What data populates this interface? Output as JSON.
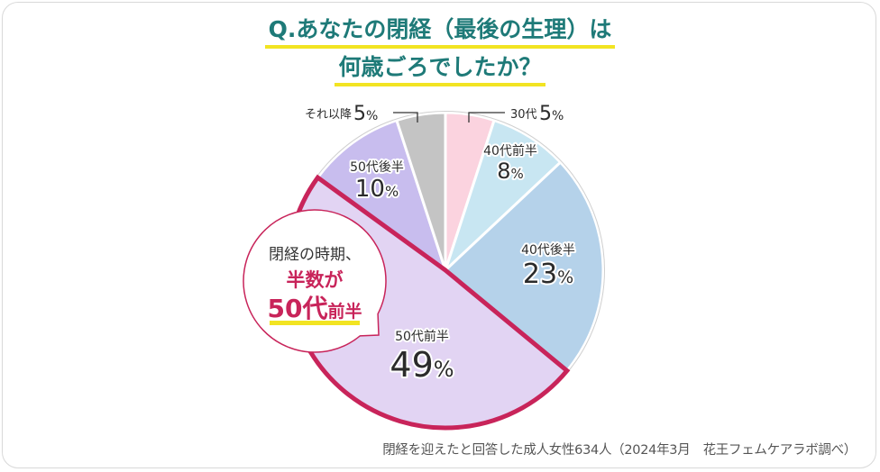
{
  "title": {
    "line1": "Q.あなたの閉経（最後の生理）は",
    "line2": "何歳ごろでしたか？"
  },
  "callout": {
    "line1": "閉経の時期、",
    "line2": "半数が",
    "line3_big": "50代",
    "line3_small": "前半"
  },
  "footnote": "閉経を迎えたと回答した成人女性634人（2024年3月　花王フェムケアラボ調べ）",
  "colors": {
    "title": "#1e7a78",
    "underline": "#f2e422",
    "highlight": "#c8245a"
  },
  "chart_data": {
    "type": "pie",
    "title": "Q.あなたの閉経（最後の生理）は何歳ごろでしたか？",
    "unit": "%",
    "direction": "clockwise from top",
    "slices": [
      {
        "label": "30代",
        "value": 5,
        "color": "#fbd3df"
      },
      {
        "label": "40代前半",
        "value": 8,
        "color": "#c8e6f2"
      },
      {
        "label": "40代後半",
        "value": 23,
        "color": "#b5d2ea"
      },
      {
        "label": "50代前半",
        "value": 49,
        "color": "#e2d4f3",
        "highlight": true
      },
      {
        "label": "50代後半",
        "value": 10,
        "color": "#c8bdee"
      },
      {
        "label": "それ以降",
        "value": 5,
        "color": "#c4c4c4"
      }
    ]
  }
}
